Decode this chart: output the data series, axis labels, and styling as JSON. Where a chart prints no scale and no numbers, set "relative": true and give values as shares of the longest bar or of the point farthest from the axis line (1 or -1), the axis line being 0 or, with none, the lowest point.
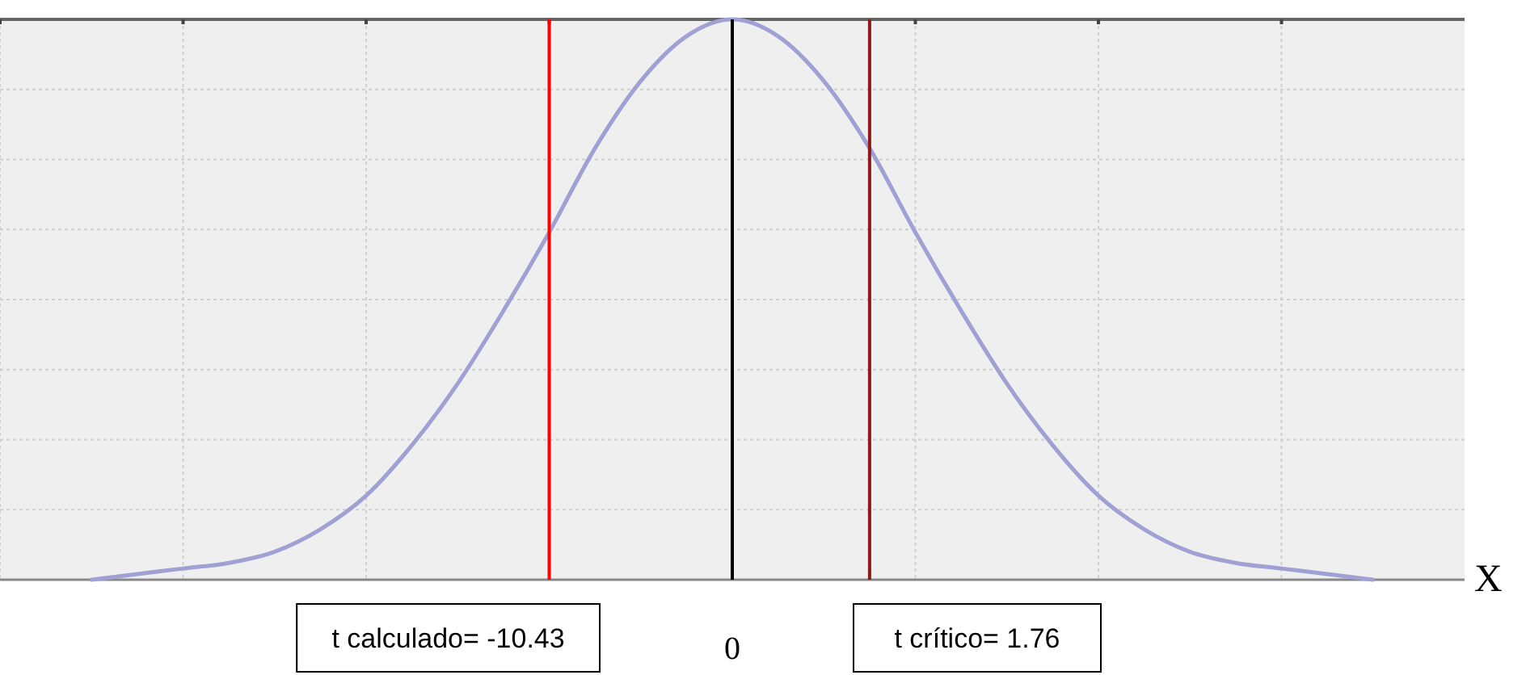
{
  "chart_data": {
    "type": "line",
    "relative": true,
    "xlabel": "X",
    "categories": [
      null,
      null,
      null,
      null,
      null,
      null,
      null,
      null,
      null,
      null,
      null,
      null,
      null,
      null,
      null,
      null,
      null,
      null,
      null,
      null,
      null,
      null,
      null,
      null,
      null,
      null,
      null,
      null,
      null,
      null,
      null,
      null
    ],
    "series": [
      {
        "color": "#a0a0d4",
        "values": [
          null,
          null,
          0,
          0.01,
          0.02,
          0.03,
          0.05,
          0.09,
          0.15,
          0.24,
          0.35,
          0.48,
          0.62,
          0.77,
          0.89,
          0.97,
          1,
          0.97,
          0.89,
          0.77,
          0.62,
          0.48,
          0.35,
          0.24,
          0.15,
          0.09,
          0.05,
          0.03,
          0.02,
          0.01,
          0,
          null
        ]
      }
    ],
    "grid": true,
    "marker": "none",
    "line_style": "solid",
    "annotations": [
      "t calculado= -10.43",
      "0",
      "t crítico= 1.76"
    ]
  }
}
